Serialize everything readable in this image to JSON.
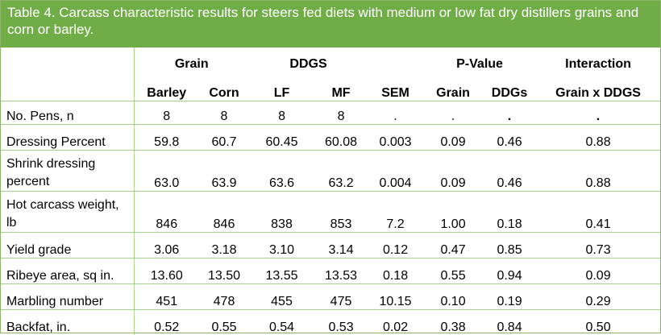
{
  "caption": "Table 4. Carcass characteristic results for steers fed diets with medium or low fat dry distillers grains and corn or barley.",
  "group_headers": {
    "grain": "Grain",
    "ddgs": "DDGS",
    "pvalue": "P-Value",
    "interaction": "Interaction"
  },
  "columns": [
    "Barley",
    "Corn",
    "LF",
    "MF",
    "SEM",
    "Grain",
    "DDGs",
    "Grain x DDGS"
  ],
  "rows": [
    {
      "label": "No. Pens, n",
      "values": [
        "8",
        "8",
        "8",
        "8",
        ".",
        ".",
        ".",
        "."
      ]
    },
    {
      "label": "Dressing Percent",
      "values": [
        "59.8",
        "60.7",
        "60.45",
        "60.08",
        "0.003",
        "0.09",
        "0.46",
        "0.88"
      ]
    },
    {
      "label": "Shrink dressing percent",
      "values": [
        "63.0",
        "63.9",
        "63.6",
        "63.2",
        "0.004",
        "0.09",
        "0.46",
        "0.88"
      ]
    },
    {
      "label": "Hot carcass weight, lb",
      "values": [
        "846",
        "846",
        "838",
        "853",
        "7.2",
        "1.00",
        "0.18",
        "0.41"
      ]
    },
    {
      "label": "Yield grade",
      "values": [
        "3.06",
        "3.18",
        "3.10",
        "3.14",
        "0.12",
        "0.47",
        "0.85",
        "0.73"
      ]
    },
    {
      "label": "Ribeye area, sq in.",
      "values": [
        "13.60",
        "13.50",
        "13.55",
        "13.53",
        "0.18",
        "0.55",
        "0.94",
        "0.09"
      ]
    },
    {
      "label": "Marbling number",
      "values": [
        "451",
        "478",
        "455",
        "475",
        "10.15",
        "0.10",
        "0.19",
        "0.29"
      ]
    },
    {
      "label": "Backfat, in.",
      "values": [
        "0.52",
        "0.55",
        "0.54",
        "0.53",
        "0.02",
        "0.38",
        "0.84",
        "0.50"
      ]
    }
  ],
  "colors": {
    "header_bg": "#70ad47",
    "border": "#a8d08d"
  }
}
